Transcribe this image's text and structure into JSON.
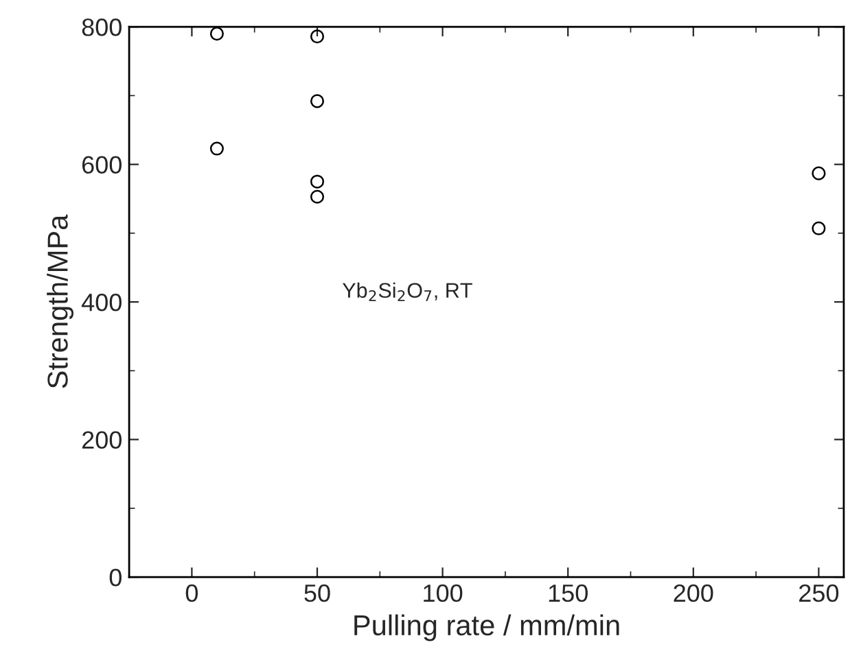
{
  "chart_data": {
    "type": "scatter",
    "xlabel": "Pulling rate / mm/min",
    "ylabel": "Strength/MPa",
    "x": [
      10,
      10,
      50,
      50,
      50,
      50,
      250,
      250
    ],
    "values": [
      790,
      623,
      786,
      692,
      575,
      553,
      587,
      507
    ],
    "color": "#000000",
    "marker": "circle",
    "grid": false,
    "legend": false,
    "xlim": [
      -25,
      260
    ],
    "xticks": [
      0,
      50,
      100,
      150,
      200,
      250
    ],
    "ylim": [
      0,
      800
    ],
    "yticks": [
      0,
      200,
      400,
      600,
      800
    ],
    "annotations": [
      "Yb$_{2}$Si$_{2}$O$_{7}$, RT"
    ]
  }
}
